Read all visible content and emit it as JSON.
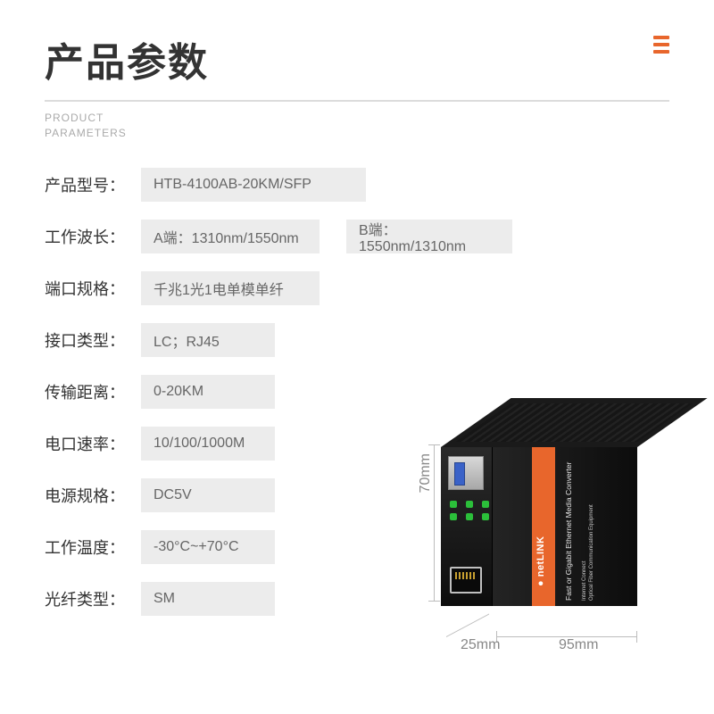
{
  "header": {
    "title_cn": "产品参数",
    "title_en_line1": "PRODUCT",
    "title_en_line2": "PARAMETERS"
  },
  "accent_color": "#e8662c",
  "specs": [
    {
      "label": "产品型号：",
      "values": [
        {
          "text": "HTB-4100AB-20KM/SFP",
          "w": "w1"
        }
      ]
    },
    {
      "label": "工作波长：",
      "values": [
        {
          "text": "A端：1310nm/1550nm",
          "w": "w2"
        },
        {
          "text": "B端：1550nm/1310nm",
          "w": "w3",
          "gap": true
        }
      ]
    },
    {
      "label": "端口规格：",
      "values": [
        {
          "text": "千兆1光1电单模单纤",
          "w": "w2"
        }
      ]
    },
    {
      "label": "接口类型：",
      "values": [
        {
          "text": "LC；RJ45",
          "w": "short"
        }
      ]
    },
    {
      "label": "传输距离：",
      "values": [
        {
          "text": "0-20KM",
          "w": "short"
        }
      ]
    },
    {
      "label": "电口速率：",
      "values": [
        {
          "text": "10/100/1000M",
          "w": "short"
        }
      ]
    },
    {
      "label": "电源规格：",
      "values": [
        {
          "text": "DC5V",
          "w": "short"
        }
      ]
    },
    {
      "label": "工作温度：",
      "values": [
        {
          "text": "-30°C~+70°C",
          "w": "short"
        }
      ]
    },
    {
      "label": "光纤类型：",
      "values": [
        {
          "text": "SM",
          "w": "short"
        }
      ]
    }
  ],
  "device": {
    "brand": "netLINK",
    "tagline": "Fast or Gigabit Ethernet Media Converter",
    "fine1": "Optical Fiber Communication Equipment",
    "fine2": "Internet  Connect",
    "dims": {
      "height": "70mm",
      "depth": "25mm",
      "width": "95mm"
    }
  }
}
